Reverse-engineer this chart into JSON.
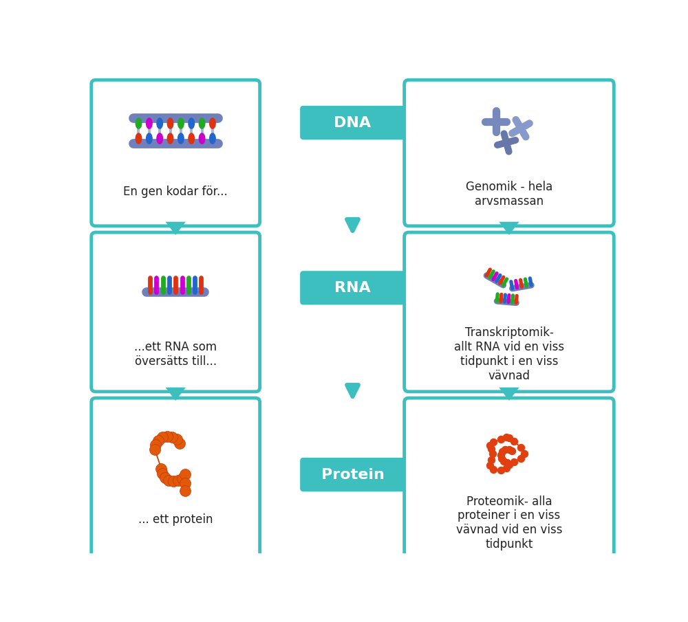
{
  "background_color": "#ffffff",
  "teal": "#3DBFC0",
  "box_bg": "#ffffff",
  "text_color": "#222222",
  "label_text_color": "#ffffff",
  "left_boxes": [
    {
      "label": "En gen kodar för..."
    },
    {
      "label": "...ett RNA som\növersätts till..."
    },
    {
      "label": "... ett protein"
    }
  ],
  "center_labels": [
    "DNA",
    "RNA",
    "Protein"
  ],
  "right_boxes": [
    {
      "label": "Genomik - hela\narvsmassan"
    },
    {
      "label": "Transkriptomik-\nallt RNA vid en viss\ntidpunkt i en viss\nvävnad"
    },
    {
      "label": "Proteomik- alla\nproteiner i en viss\nvävnad vid en viss\ntidpunkt"
    }
  ],
  "figsize": [
    10.0,
    9.05
  ],
  "dpi": 100
}
